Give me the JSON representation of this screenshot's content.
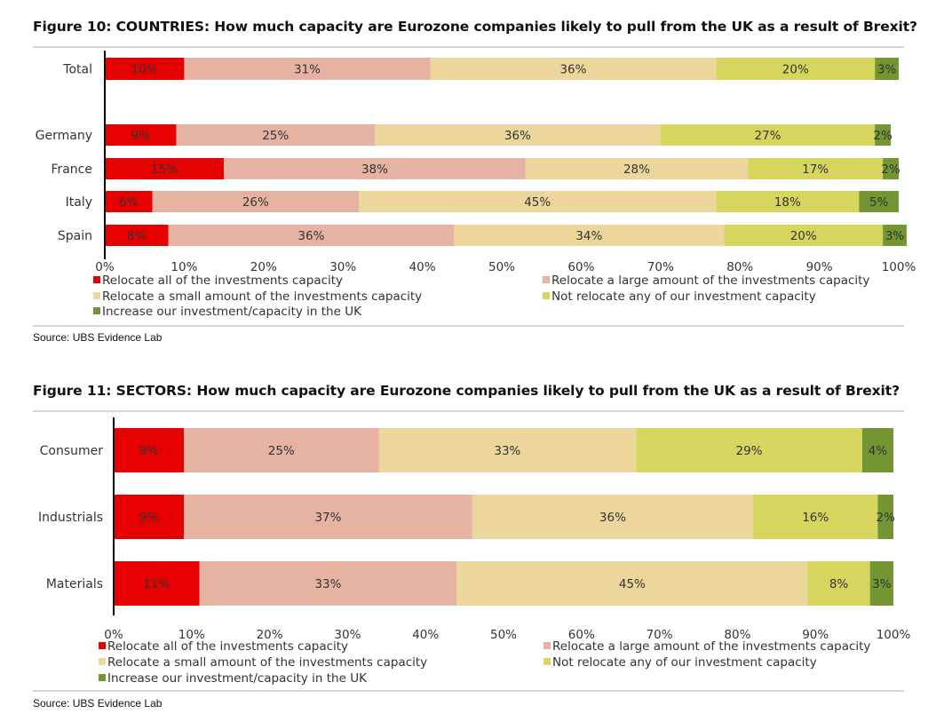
{
  "chart_data": [
    {
      "type": "bar",
      "orientation": "horizontal",
      "stacked": true,
      "title": "Figure 10: COUNTRIES: How much capacity are Eurozone companies likely to pull from the UK as a result of Brexit?",
      "source": "Source:  UBS Evidence Lab",
      "categories": [
        "Total",
        "",
        "Germany",
        "France",
        "Italy",
        "Spain"
      ],
      "xlim": [
        0,
        100
      ],
      "x_ticks": [
        "0%",
        "10%",
        "20%",
        "30%",
        "40%",
        "50%",
        "60%",
        "70%",
        "80%",
        "90%",
        "100%"
      ],
      "xlabel": "",
      "ylabel": "",
      "grid": false,
      "legend_position": "bottom",
      "series": [
        {
          "name": "Relocate all of the investments capacity",
          "color": "#e60000",
          "values": [
            10,
            null,
            9,
            15,
            6,
            8
          ]
        },
        {
          "name": "Relocate a large amount of the investments capacity",
          "color": "#e6b3a3",
          "values": [
            31,
            null,
            25,
            38,
            26,
            36
          ]
        },
        {
          "name": "Relocate a small amount of the investments capacity",
          "color": "#ecd69c",
          "values": [
            36,
            null,
            36,
            28,
            45,
            34
          ]
        },
        {
          "name": "Not relocate any of our investment capacity",
          "color": "#d6d65e",
          "values": [
            20,
            null,
            27,
            17,
            18,
            20
          ]
        },
        {
          "name": "Increase our investment/capacity in the UK",
          "color": "#739532",
          "values": [
            3,
            null,
            2,
            2,
            5,
            3
          ]
        }
      ]
    },
    {
      "type": "bar",
      "orientation": "horizontal",
      "stacked": true,
      "title": "Figure 11: SECTORS: How much capacity are Eurozone companies likely to pull from the UK as a result of Brexit?",
      "source": "Source:  UBS Evidence Lab",
      "categories": [
        "Consumer",
        "Industrials",
        "Materials"
      ],
      "xlim": [
        0,
        100
      ],
      "x_ticks": [
        "0%",
        "10%",
        "20%",
        "30%",
        "40%",
        "50%",
        "60%",
        "70%",
        "80%",
        "90%",
        "100%"
      ],
      "xlabel": "",
      "ylabel": "",
      "grid": false,
      "legend_position": "bottom",
      "series": [
        {
          "name": "Relocate all of the investments capacity",
          "color": "#e60000",
          "values": [
            9,
            9,
            11
          ]
        },
        {
          "name": "Relocate a large amount of the investments capacity",
          "color": "#e6b3a3",
          "values": [
            25,
            37,
            33
          ]
        },
        {
          "name": "Relocate a small amount of the investments capacity",
          "color": "#ecd69c",
          "values": [
            33,
            36,
            45
          ]
        },
        {
          "name": "Not relocate any of our investment capacity",
          "color": "#d6d65e",
          "values": [
            29,
            16,
            8
          ]
        },
        {
          "name": "Increase our investment/capacity in the UK",
          "color": "#739532",
          "values": [
            4,
            2,
            3
          ]
        }
      ]
    }
  ]
}
